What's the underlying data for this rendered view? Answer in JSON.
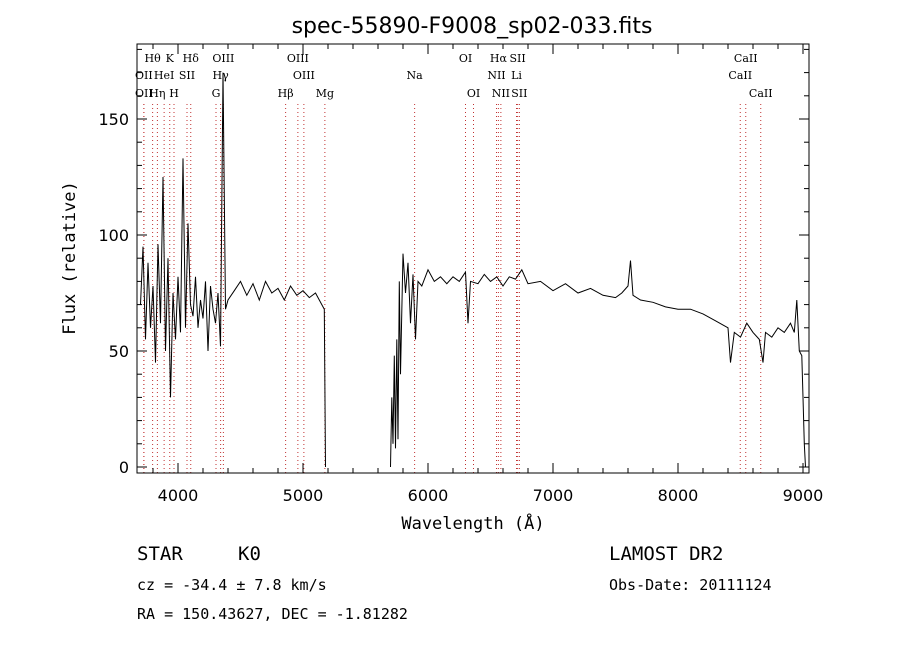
{
  "chart_data": {
    "type": "line",
    "title": "spec-55890-F9008_sp02-033.fits",
    "xlabel": "Wavelength (Å)",
    "ylabel": "Flux (relative)",
    "xlim": [
      3700,
      9050
    ],
    "ylim": [
      0,
      180
    ],
    "x_ticks": [
      4000,
      5000,
      6000,
      7000,
      8000,
      9000
    ],
    "y_ticks": [
      0,
      50,
      100,
      150
    ],
    "grid": false,
    "series_color": "#000000",
    "line_marker_color": "#c03030",
    "spectral_lines": [
      {
        "label": "Hθ",
        "wavelength": 3797,
        "row": 0
      },
      {
        "label": "K",
        "wavelength": 3934,
        "row": 0
      },
      {
        "label": "Hδ",
        "wavelength": 4102,
        "row": 0
      },
      {
        "label": "OIII",
        "wavelength": 4363,
        "row": 0
      },
      {
        "label": "OIII",
        "wavelength": 4959,
        "row": 0
      },
      {
        "label": "OI",
        "wavelength": 6300,
        "row": 0
      },
      {
        "label": "Hα",
        "wavelength": 6563,
        "row": 0
      },
      {
        "label": "SII",
        "wavelength": 6717,
        "row": 0
      },
      {
        "label": "CaII",
        "wavelength": 8542,
        "row": 0
      },
      {
        "label": "OII",
        "wavelength": 3727,
        "row": 1
      },
      {
        "label": "HeI",
        "wavelength": 3889,
        "row": 1
      },
      {
        "label": "SII",
        "wavelength": 4072,
        "row": 1
      },
      {
        "label": "Hγ",
        "wavelength": 4341,
        "row": 1
      },
      {
        "label": "OIII",
        "wavelength": 5007,
        "row": 1
      },
      {
        "label": "Na",
        "wavelength": 5893,
        "row": 1
      },
      {
        "label": "NII",
        "wavelength": 6548,
        "row": 1
      },
      {
        "label": "Li",
        "wavelength": 6708,
        "row": 1
      },
      {
        "label": "CaII",
        "wavelength": 8498,
        "row": 1
      },
      {
        "label": "OII",
        "wavelength": 3727,
        "row": 2
      },
      {
        "label": "Hη",
        "wavelength": 3835,
        "row": 2
      },
      {
        "label": "H",
        "wavelength": 3968,
        "row": 2
      },
      {
        "label": "G",
        "wavelength": 4304,
        "row": 2
      },
      {
        "label": "Hβ",
        "wavelength": 4861,
        "row": 2
      },
      {
        "label": "Mg",
        "wavelength": 5175,
        "row": 2
      },
      {
        "label": "OI",
        "wavelength": 6364,
        "row": 2
      },
      {
        "label": "NII",
        "wavelength": 6583,
        "row": 2
      },
      {
        "label": "SII",
        "wavelength": 6731,
        "row": 2
      },
      {
        "label": "CaII",
        "wavelength": 8662,
        "row": 2
      }
    ],
    "segments": [
      {
        "x": [
          3700,
          3720,
          3740,
          3760,
          3780,
          3800,
          3820,
          3840,
          3860,
          3880,
          3900,
          3920,
          3940,
          3960,
          3980,
          4000,
          4020,
          4040,
          4060,
          4080,
          4100,
          4120,
          4140,
          4160,
          4180,
          4200,
          4220,
          4240,
          4260,
          4280,
          4300,
          4320,
          4340,
          4360,
          4380,
          4400,
          4450,
          4500,
          4550,
          4600,
          4650,
          4700,
          4750,
          4800,
          4850,
          4900,
          4950,
          5000,
          5050,
          5100,
          5150,
          5170,
          5180
        ],
        "y": [
          70,
          95,
          55,
          88,
          60,
          78,
          45,
          96,
          62,
          125,
          50,
          90,
          30,
          75,
          55,
          82,
          58,
          133,
          60,
          105,
          70,
          65,
          82,
          60,
          72,
          64,
          80,
          50,
          78,
          68,
          62,
          75,
          52,
          170,
          68,
          72,
          76,
          80,
          74,
          79,
          72,
          80,
          75,
          77,
          72,
          78,
          74,
          76,
          73,
          75,
          70,
          68,
          0
        ]
      },
      {
        "x": [
          5700,
          5710,
          5720,
          5730,
          5740,
          5750,
          5760,
          5770,
          5780,
          5800,
          5820,
          5840,
          5860,
          5880,
          5900,
          5920,
          5950,
          6000,
          6050,
          6100,
          6150,
          6200,
          6250,
          6300,
          6320,
          6340,
          6400,
          6450,
          6500,
          6550,
          6600,
          6650,
          6700,
          6750,
          6800,
          6900,
          7000,
          7100,
          7200,
          7300,
          7400,
          7500,
          7550,
          7600,
          7620,
          7640,
          7700,
          7800,
          7900,
          8000,
          8100,
          8200,
          8300,
          8400,
          8420,
          8450,
          8500,
          8550,
          8600,
          8650,
          8680,
          8700,
          8750,
          8800,
          8850,
          8900,
          8930,
          8950,
          8970,
          8990,
          9000,
          9010,
          9020
        ],
        "y": [
          0,
          30,
          10,
          48,
          8,
          55,
          12,
          80,
          40,
          92,
          75,
          88,
          62,
          83,
          55,
          80,
          78,
          85,
          80,
          82,
          79,
          82,
          80,
          84,
          62,
          80,
          79,
          83,
          80,
          82,
          78,
          82,
          81,
          85,
          79,
          80,
          76,
          79,
          75,
          77,
          74,
          73,
          75,
          78,
          89,
          74,
          72,
          71,
          69,
          68,
          68,
          66,
          63,
          60,
          45,
          58,
          56,
          62,
          58,
          55,
          45,
          58,
          56,
          60,
          58,
          62,
          58,
          72,
          50,
          48,
          30,
          10,
          0
        ]
      }
    ]
  },
  "info": {
    "object_class": "STAR",
    "subclass": "K0",
    "survey": "LAMOST DR2",
    "redshift": "cz = -34.4 ± 7.8 km/s",
    "obs_date": "Obs-Date: 20111124",
    "coords": "RA = 150.43627, DEC =  -1.81282"
  }
}
